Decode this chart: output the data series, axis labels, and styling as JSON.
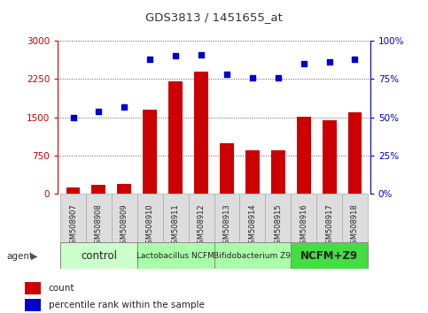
{
  "title": "GDS3813 / 1451655_at",
  "samples": [
    "GSM508907",
    "GSM508908",
    "GSM508909",
    "GSM508910",
    "GSM508911",
    "GSM508912",
    "GSM508913",
    "GSM508914",
    "GSM508915",
    "GSM508916",
    "GSM508917",
    "GSM508918"
  ],
  "counts": [
    130,
    175,
    200,
    1650,
    2200,
    2400,
    1000,
    850,
    850,
    1520,
    1450,
    1600
  ],
  "percentile": [
    50,
    54,
    57,
    88,
    90,
    91,
    78,
    76,
    76,
    85,
    86,
    88
  ],
  "groups": [
    {
      "label": "control",
      "start": 0,
      "end": 3,
      "color": "#ccffcc",
      "fontsize": 8.5,
      "bold": false
    },
    {
      "label": "Lactobacillus NCFM",
      "start": 3,
      "end": 6,
      "color": "#aaffaa",
      "fontsize": 6.5,
      "bold": false
    },
    {
      "label": "Bifidobacterium Z9",
      "start": 6,
      "end": 9,
      "color": "#aaffaa",
      "fontsize": 6.5,
      "bold": false
    },
    {
      "label": "NCFM+Z9",
      "start": 9,
      "end": 12,
      "color": "#44dd44",
      "fontsize": 8.5,
      "bold": true
    }
  ],
  "bar_color": "#cc0000",
  "dot_color": "#0000cc",
  "ylim_left": [
    0,
    3000
  ],
  "ylim_right": [
    0,
    100
  ],
  "yticks_left": [
    0,
    750,
    1500,
    2250,
    3000
  ],
  "yticks_right": [
    0,
    25,
    50,
    75,
    100
  ],
  "ytick_labels_left": [
    "0",
    "750",
    "1500",
    "2250",
    "3000"
  ],
  "ytick_labels_right": [
    "0%",
    "25%",
    "50%",
    "75%",
    "100%"
  ],
  "bar_width": 0.55,
  "agent_label": "agent",
  "legend_count_label": "count",
  "legend_pct_label": "percentile rank within the sample",
  "grid_color": "#555555",
  "bg_color": "#ffffff",
  "plot_bg": "#ffffff",
  "left_axis_color": "#cc0000",
  "right_axis_color": "#0000cc",
  "title_color": "#333333",
  "xtick_bg_color": "#dddddd",
  "xtick_border_color": "#aaaaaa",
  "group_border_color": "#888888"
}
